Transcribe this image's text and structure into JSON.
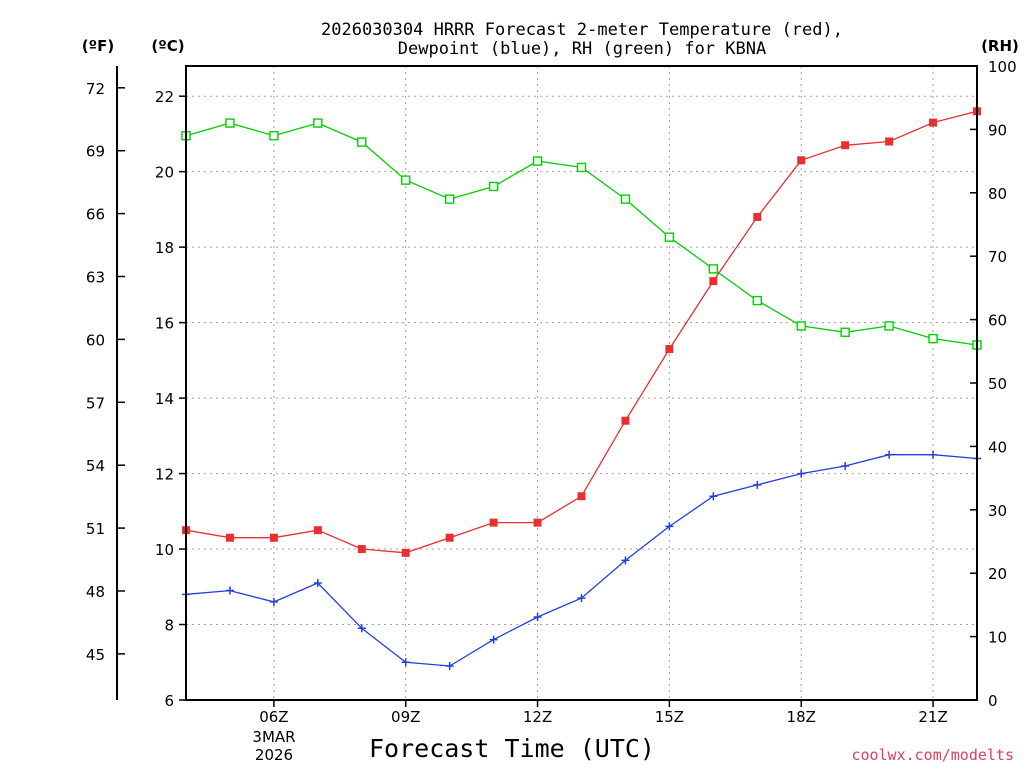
{
  "chart_data": {
    "type": "line",
    "title_line1": "2026030304 HRRR Forecast 2-meter Temperature (red),",
    "title_line2": "Dewpoint (blue), RH (green) for KBNA",
    "unit_left_outer": "(ºF)",
    "unit_left_inner": "(ºC)",
    "unit_right": "(RH)",
    "xlabel": "Forecast Time (UTC)",
    "credit": "coolwx.com/modelts",
    "date_line1": "3MAR",
    "date_line2": "2026",
    "x_range_hours": [
      4,
      22
    ],
    "x_ticks": [
      {
        "hour": 6,
        "label": "06Z"
      },
      {
        "hour": 9,
        "label": "09Z"
      },
      {
        "hour": 12,
        "label": "12Z"
      },
      {
        "hour": 15,
        "label": "15Z"
      },
      {
        "hour": 18,
        "label": "18Z"
      },
      {
        "hour": 21,
        "label": "21Z"
      }
    ],
    "celsius_axis": {
      "ylim": [
        6,
        22.8
      ],
      "ticks": [
        "6",
        "8",
        "10",
        "12",
        "14",
        "16",
        "18",
        "20",
        "22"
      ]
    },
    "fahrenheit_axis": {
      "ticks": [
        "45",
        "48",
        "51",
        "54",
        "57",
        "60",
        "63",
        "66",
        "69",
        "72"
      ]
    },
    "rh_axis": {
      "ylim": [
        0,
        100
      ],
      "ticks": [
        "0",
        "10",
        "20",
        "30",
        "40",
        "50",
        "60",
        "70",
        "80",
        "90",
        "100"
      ]
    },
    "hours": [
      4,
      5,
      6,
      7,
      8,
      9,
      10,
      11,
      12,
      13,
      14,
      15,
      16,
      17,
      18,
      19,
      20,
      21,
      22
    ],
    "series": [
      {
        "name": "Temperature",
        "unit": "C",
        "color": "#e83030",
        "marker": "filled-square",
        "values": [
          10.5,
          10.3,
          10.3,
          10.5,
          10.0,
          9.9,
          10.3,
          10.7,
          10.7,
          11.4,
          13.4,
          15.3,
          17.1,
          18.8,
          20.3,
          20.7,
          20.8,
          21.3,
          21.6
        ]
      },
      {
        "name": "Dewpoint",
        "unit": "C",
        "color": "#2040e0",
        "marker": "plus",
        "values": [
          8.8,
          8.9,
          8.6,
          9.1,
          7.9,
          7.0,
          6.9,
          7.6,
          8.2,
          8.7,
          9.7,
          10.6,
          11.4,
          11.7,
          12.0,
          12.2,
          12.5,
          12.5,
          12.4
        ]
      },
      {
        "name": "RH",
        "unit": "%",
        "color": "#00d000",
        "marker": "open-square",
        "values": [
          89,
          91,
          89,
          91,
          88,
          82,
          79,
          81,
          85,
          84,
          79,
          73,
          68,
          63,
          59,
          58,
          59,
          57,
          56
        ]
      }
    ]
  }
}
